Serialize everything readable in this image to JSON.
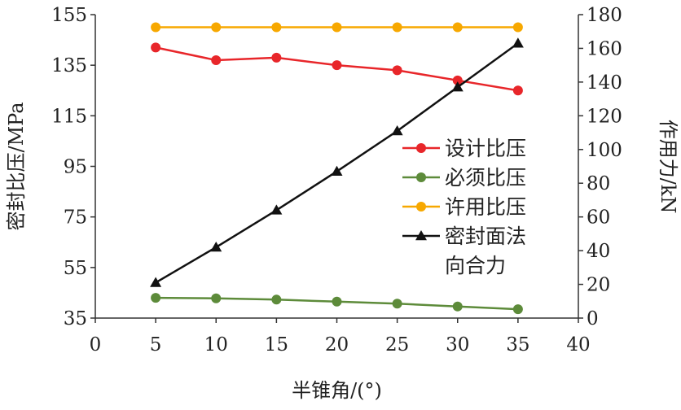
{
  "chart_data": {
    "type": "line",
    "x": [
      5,
      10,
      15,
      20,
      25,
      30,
      35
    ],
    "xlim": [
      0,
      40
    ],
    "x_ticks": [
      "0",
      "5",
      "10",
      "15",
      "20",
      "25",
      "30",
      "35",
      "40"
    ],
    "xlabel": "半锥角/(°)",
    "ylabel_left": "密封比压/MPa",
    "ylim_left": [
      35,
      155
    ],
    "y_ticks_left": [
      "35",
      "55",
      "75",
      "95",
      "115",
      "135",
      "155"
    ],
    "ylabel_right": "作用力/kN",
    "ylim_right": [
      0,
      180
    ],
    "y_ticks_right": [
      "0",
      "20",
      "40",
      "60",
      "80",
      "100",
      "120",
      "140",
      "160",
      "180"
    ],
    "grid": false,
    "legend_position": "center-right",
    "series": [
      {
        "name": "设计比压",
        "axis": "left",
        "marker": "circle",
        "color": "#e8262a",
        "values": [
          142,
          137,
          138,
          135,
          133,
          129,
          125
        ]
      },
      {
        "name": "必须比压",
        "axis": "left",
        "marker": "circle",
        "color": "#5d8b3a",
        "values": [
          43,
          42.8,
          42.3,
          41.5,
          40.7,
          39.6,
          38.5
        ]
      },
      {
        "name": "许用比压",
        "axis": "left",
        "marker": "circle",
        "color": "#f7a800",
        "values": [
          150,
          150,
          150,
          150,
          150,
          150,
          150
        ]
      },
      {
        "name": "密封面法\n向合力",
        "axis": "right",
        "marker": "triangle",
        "color": "#111111",
        "values": [
          21,
          42,
          64,
          87,
          111,
          137,
          163
        ]
      }
    ]
  }
}
